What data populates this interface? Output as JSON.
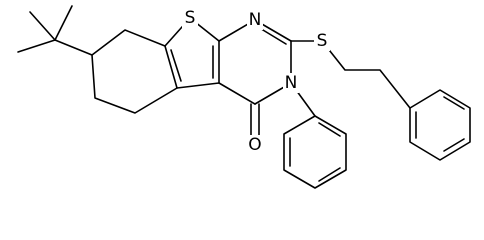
{
  "atoms": [
    {
      "label": "S"
    },
    {
      "label": "N"
    },
    {
      "label": "S"
    },
    {
      "label": "N"
    },
    {
      "label": "O"
    }
  ]
}
